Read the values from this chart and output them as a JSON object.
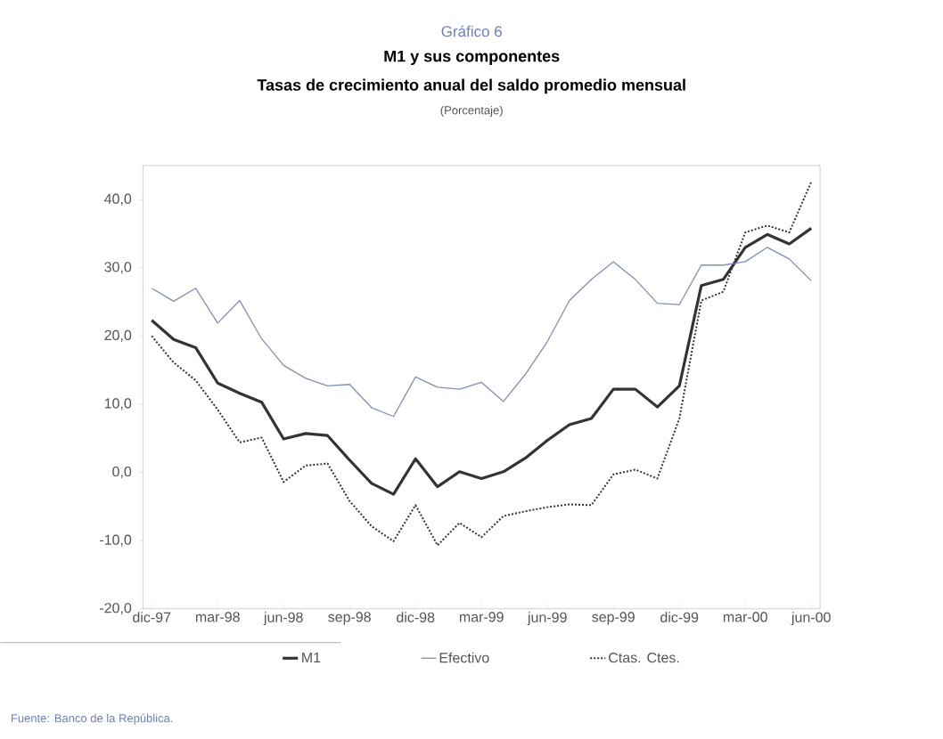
{
  "chart_data": {
    "type": "line",
    "title": "M1 y sus componentes",
    "subtitle": "Tasas de crecimiento anual del saldo promedio mensual",
    "annotations": [
      "Gráfico 6",
      "Fuente: Banco de la República.",
      "(Porcentaje)"
    ],
    "categories": [
      "dic-97",
      null,
      null,
      "mar-98",
      null,
      null,
      "jun-98",
      null,
      null,
      "sep-98",
      null,
      null,
      "dic-98",
      null,
      null,
      "mar-99",
      null,
      null,
      "jun-99",
      null,
      null,
      "sep-99",
      null,
      null,
      "dic-99",
      null,
      null,
      "mar-00",
      null,
      null,
      "jun-00"
    ],
    "series": [
      {
        "name": "M1",
        "color": "#333333",
        "line_style": "solid",
        "values": [
          22.3,
          19.5,
          18.3,
          13.1,
          11.6,
          10.3,
          4.9,
          5.7,
          5.4,
          1.8,
          -1.6,
          -3.2,
          2.0,
          -2.1,
          0.1,
          -0.9,
          0.1,
          2.1,
          4.7,
          7.0,
          7.9,
          12.2,
          12.2,
          9.6,
          12.7,
          27.4,
          28.3,
          33.0,
          34.9,
          33.5,
          35.8
        ]
      },
      {
        "name": "Efectivo",
        "color": "#7f8fb8",
        "line_style": "solid",
        "values": [
          27.0,
          25.1,
          27.0,
          21.9,
          25.2,
          19.6,
          15.7,
          13.8,
          12.7,
          12.9,
          9.5,
          8.2,
          14.0,
          12.5,
          12.2,
          13.2,
          10.4,
          14.4,
          19.2,
          25.2,
          28.3,
          30.9,
          28.3,
          24.8,
          24.6,
          30.4,
          30.4,
          30.9,
          33.0,
          31.3,
          28.1
        ]
      },
      {
        "name": "Ctas. Ctes.",
        "color": "#333333",
        "line_style": "dotted",
        "values": [
          20.0,
          16.1,
          13.5,
          9.2,
          4.4,
          5.1,
          -1.4,
          1.0,
          1.3,
          -4.2,
          -7.9,
          -10.1,
          -4.8,
          -10.7,
          -7.4,
          -9.5,
          -6.4,
          -5.7,
          -5.1,
          -4.7,
          -4.8,
          -0.3,
          0.4,
          -0.9,
          7.9,
          25.2,
          26.5,
          35.2,
          36.2,
          35.2,
          42.6
        ]
      }
    ],
    "ylim": [
      -20,
      45
    ],
    "yticks": [
      {
        "value": -20,
        "label": "-20,0"
      },
      {
        "value": -10,
        "label": "-10,0"
      },
      {
        "value": 0,
        "label": "0,0"
      },
      {
        "value": 10,
        "label": "10,0"
      },
      {
        "value": 20,
        "label": "20,0"
      },
      {
        "value": 30,
        "label": "30,0"
      },
      {
        "value": 40,
        "label": "40,0"
      }
    ],
    "grid": false,
    "legend": "bottom",
    "marker": "none"
  }
}
